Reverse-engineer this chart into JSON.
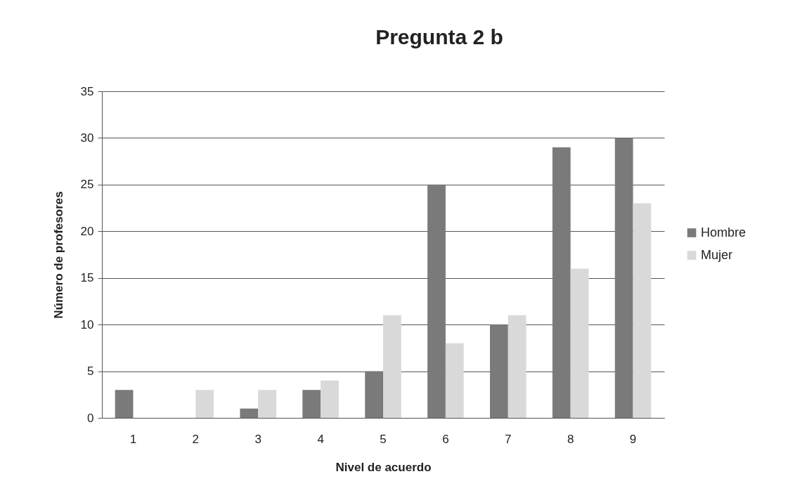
{
  "chart_data": {
    "type": "bar",
    "title": "Pregunta 2 b",
    "xlabel": "Nivel de acuerdo",
    "ylabel": "Número de profesores",
    "categories": [
      "1",
      "2",
      "3",
      "4",
      "5",
      "6",
      "7",
      "8",
      "9"
    ],
    "series": [
      {
        "name": "Hombre",
        "color": "#7a7a7a",
        "values": [
          3,
          0,
          1,
          3,
          5,
          25,
          10,
          29,
          30
        ]
      },
      {
        "name": "Mujer",
        "color": "#d9d9d9",
        "values": [
          0,
          3,
          3,
          4,
          11,
          8,
          11,
          16,
          23
        ]
      }
    ],
    "ylim": [
      0,
      35
    ],
    "yticks": [
      0,
      5,
      10,
      15,
      20,
      25,
      30,
      35
    ],
    "grid": "y",
    "legend": "right"
  }
}
